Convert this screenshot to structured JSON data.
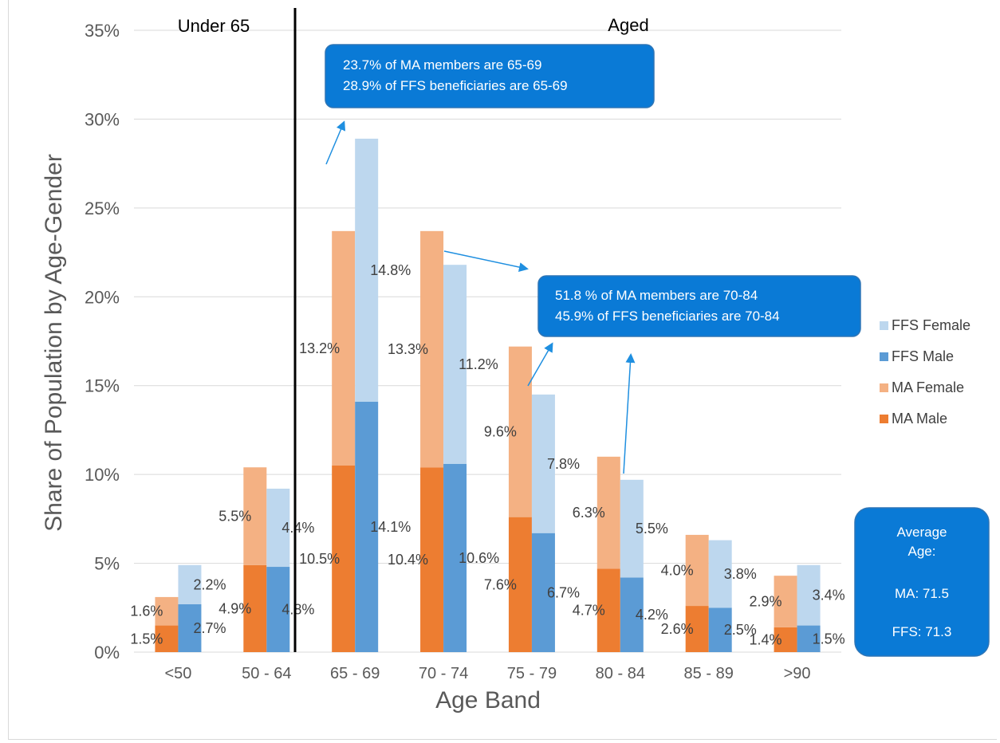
{
  "chart_data": {
    "type": "bar",
    "xlabel": "Age Band",
    "ylabel": "Share of Population by Age-Gender",
    "ylim": [
      0,
      35
    ],
    "yticks": [
      "0%",
      "5%",
      "10%",
      "15%",
      "20%",
      "25%",
      "30%",
      "35%"
    ],
    "categories": [
      "<50",
      "50  -  64",
      "65  -  69",
      "70  -  74",
      "75  -  79",
      "80  -  84",
      "85  -  89",
      ">90"
    ],
    "stacks": [
      {
        "name": "MA",
        "series": [
          {
            "name": "MA Male",
            "color": "#ed7d31",
            "values": [
              1.5,
              4.9,
              10.5,
              10.4,
              7.6,
              4.7,
              2.6,
              1.4
            ],
            "labels": [
              "1.5%",
              "4.9%",
              "10.5%",
              "10.4%",
              "7.6%",
              "4.7%",
              "2.6%",
              "1.4%"
            ]
          },
          {
            "name": "MA Female",
            "color": "#f4b183",
            "values": [
              1.6,
              5.5,
              13.2,
              13.3,
              9.6,
              6.3,
              4.0,
              2.9
            ],
            "labels": [
              "1.6%",
              "5.5%",
              "13.2%",
              "13.3%",
              "9.6%",
              "6.3%",
              "4.0%",
              "2.9%"
            ]
          }
        ]
      },
      {
        "name": "FFS",
        "series": [
          {
            "name": "FFS Male",
            "color": "#5b9bd5",
            "values": [
              2.7,
              4.8,
              14.1,
              10.6,
              6.7,
              4.2,
              2.5,
              1.5
            ],
            "labels": [
              "2.7%",
              "4.8%",
              "14.1%",
              "10.6%",
              "6.7%",
              "4.2%",
              "2.5%",
              "1.5%"
            ]
          },
          {
            "name": "FFS Female",
            "color": "#bdd7ee",
            "values": [
              2.2,
              4.4,
              14.8,
              11.2,
              7.8,
              5.5,
              3.8,
              3.4
            ],
            "labels": [
              "2.2%",
              "4.4%",
              "14.8%",
              "11.2%",
              "7.8%",
              "5.5%",
              "3.8%",
              "3.4%"
            ]
          }
        ]
      }
    ],
    "legend": {
      "position": "right",
      "order": [
        "FFS Female",
        "FFS Male",
        "MA Female",
        "MA Male"
      ]
    },
    "grid": true,
    "annotations": {
      "regions": [
        "Under 65",
        "Aged"
      ],
      "callout_1": [
        "23.7% of MA members are 65-69",
        "28.9% of FFS beneficiaries are 65-69"
      ],
      "callout_2": [
        "51.8 % of MA members are 70-84",
        "45.9% of FFS beneficiaries are 70-84"
      ],
      "average_box": {
        "title": "Average Age:",
        "ma": "MA: 71.5",
        "ffs": "FFS: 71.3"
      }
    },
    "colors": {
      "callout": "#0a7ad6",
      "callout_border": "#2e75b6",
      "arrow": "#1f8fe0",
      "divider": "#000000",
      "grid": "#d9d9d9"
    }
  }
}
